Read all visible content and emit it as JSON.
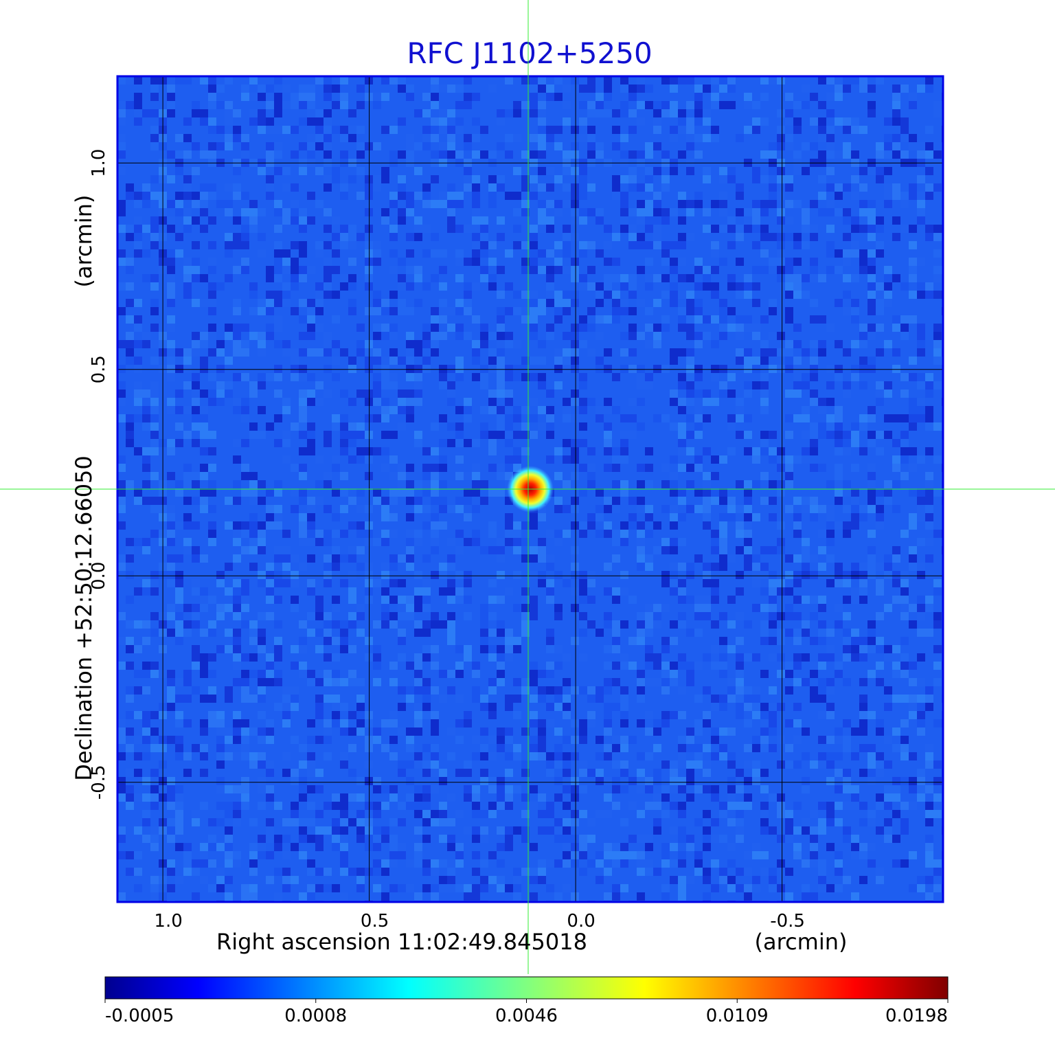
{
  "chart_data": {
    "type": "heatmap",
    "title": "RFC J1102+5250",
    "xlabel": "Right ascension  11:02:49.845018",
    "xunit": "(arcmin)",
    "ylabel": "Declination  +52:50:12.66050",
    "yunit": "(arcmin)",
    "x_ticks": [
      "1.0",
      "0.5",
      "0.0",
      "-0.5"
    ],
    "x_tick_values": [
      1.0,
      0.5,
      0.0,
      -0.5
    ],
    "y_ticks": [
      "1.0",
      "0.5",
      "0.0",
      "-0.5"
    ],
    "y_tick_values": [
      1.0,
      0.5,
      0.0,
      -0.5
    ],
    "xlim": [
      1.11,
      -0.89
    ],
    "ylim": [
      -0.79,
      1.21
    ],
    "x_reversed": true,
    "grid": true,
    "crosshair": {
      "x": 0.115,
      "y": 0.21
    },
    "source_peak": {
      "x": 0.11,
      "y": 0.21,
      "value": 0.0198
    },
    "colorbar": {
      "colormap": "jet",
      "ticks": [
        "-0.0005",
        "0.0008",
        "0.0046",
        "0.0109",
        "0.0198"
      ],
      "min": -0.0005,
      "max": 0.0198
    },
    "colors": {
      "title": "#1010d0",
      "frame": "#0000e6",
      "background_field": "#1e5ef0",
      "grid": "#000000",
      "crosshair": "#33ee33"
    }
  }
}
